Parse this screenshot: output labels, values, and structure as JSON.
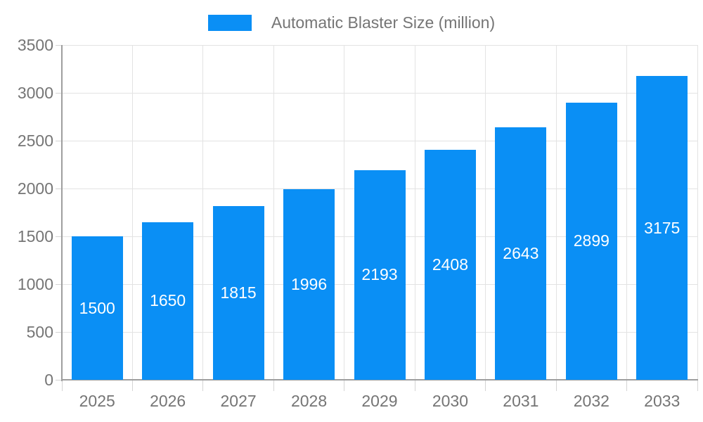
{
  "chart_data": {
    "type": "bar",
    "title": "Automatic Blaster Size (million)",
    "categories": [
      "2025",
      "2026",
      "2027",
      "2028",
      "2029",
      "2030",
      "2031",
      "2032",
      "2033"
    ],
    "values": [
      1500,
      1650,
      1815,
      1996,
      2193,
      2408,
      2643,
      2899,
      3175
    ],
    "xlabel": "",
    "ylabel": "",
    "ylim": [
      0,
      3500
    ],
    "yticks": [
      0,
      500,
      1000,
      1500,
      2000,
      2500,
      3000,
      3500
    ],
    "grid": true,
    "legend_position": "top-center",
    "value_labels_position": "inside-center",
    "colors": {
      "bar": "#0a8ff5",
      "value_label": "#ffffff",
      "axis_text": "#757575",
      "grid_line": "#e3e3e3",
      "axis_line": "#9e9e9e",
      "tick_line": "#d4d4d4",
      "background": "#ffffff"
    }
  }
}
